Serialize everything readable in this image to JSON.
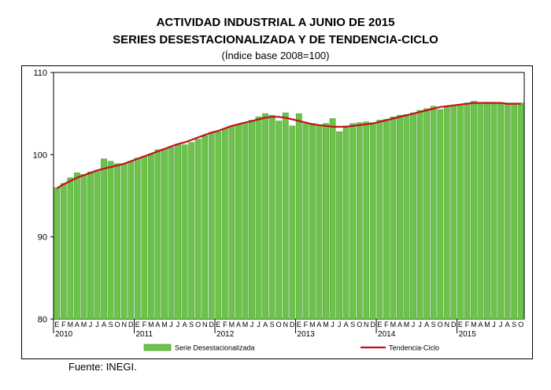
{
  "header": {
    "title": "ACTIVIDAD INDUSTRIAL A JUNIO DE 2015",
    "subtitle": "SERIES DESESTACIONALIZADA Y DE TENDENCIA-CICLO",
    "subtitle2": "(Índice base 2008=100)"
  },
  "footer": {
    "source": "Fuente: INEGI."
  },
  "colors": {
    "bar": "#6cc24a",
    "bar_edge": "#3c8f24",
    "line": "#c0121b"
  },
  "chart_data": {
    "type": "bar",
    "ylim": [
      80,
      110
    ],
    "yticks": [
      80,
      90,
      100,
      110
    ],
    "grid": false,
    "legend_position": "bottom",
    "month_letters": [
      "E",
      "F",
      "M",
      "A",
      "M",
      "J",
      "J",
      "A",
      "S",
      "O",
      "N",
      "D"
    ],
    "year_labels": [
      "2010",
      "2011",
      "2012",
      "2013",
      "2014",
      "2015"
    ],
    "series": [
      {
        "name": "Serie Desestacionalizada",
        "type": "bar",
        "values": [
          96.0,
          96.5,
          97.2,
          97.8,
          97.6,
          97.9,
          98.1,
          99.5,
          99.2,
          98.9,
          98.9,
          99.2,
          99.6,
          99.8,
          100.1,
          100.6,
          100.7,
          100.9,
          101.3,
          101.2,
          101.5,
          101.9,
          102.3,
          102.7,
          102.8,
          103.2,
          103.5,
          103.7,
          103.9,
          104.2,
          104.6,
          105.0,
          104.8,
          104.1,
          105.1,
          103.5,
          105.0,
          103.9,
          103.8,
          103.6,
          103.8,
          104.4,
          102.8,
          103.5,
          103.8,
          103.9,
          104.0,
          103.9,
          104.2,
          104.3,
          104.6,
          104.8,
          104.9,
          105.1,
          105.4,
          105.6,
          105.9,
          105.5,
          105.9,
          106.0,
          106.1,
          106.3,
          106.5,
          106.3,
          106.4,
          106.2,
          106.3,
          106.1,
          106.2,
          106.3
        ]
      },
      {
        "name": "Tendencia-Ciclo",
        "type": "line",
        "values": [
          95.9,
          96.4,
          96.8,
          97.2,
          97.5,
          97.8,
          98.1,
          98.3,
          98.5,
          98.7,
          98.9,
          99.2,
          99.5,
          99.8,
          100.1,
          100.4,
          100.7,
          101.0,
          101.3,
          101.5,
          101.8,
          102.1,
          102.4,
          102.7,
          102.9,
          103.2,
          103.5,
          103.7,
          103.9,
          104.1,
          104.3,
          104.5,
          104.6,
          104.6,
          104.5,
          104.3,
          104.1,
          103.9,
          103.7,
          103.6,
          103.5,
          103.4,
          103.4,
          103.4,
          103.5,
          103.6,
          103.7,
          103.8,
          104.0,
          104.2,
          104.4,
          104.6,
          104.8,
          105.0,
          105.2,
          105.4,
          105.6,
          105.8,
          105.9,
          106.0,
          106.1,
          106.2,
          106.3,
          106.3,
          106.3,
          106.3,
          106.3,
          106.2,
          106.2,
          106.2
        ]
      }
    ]
  }
}
